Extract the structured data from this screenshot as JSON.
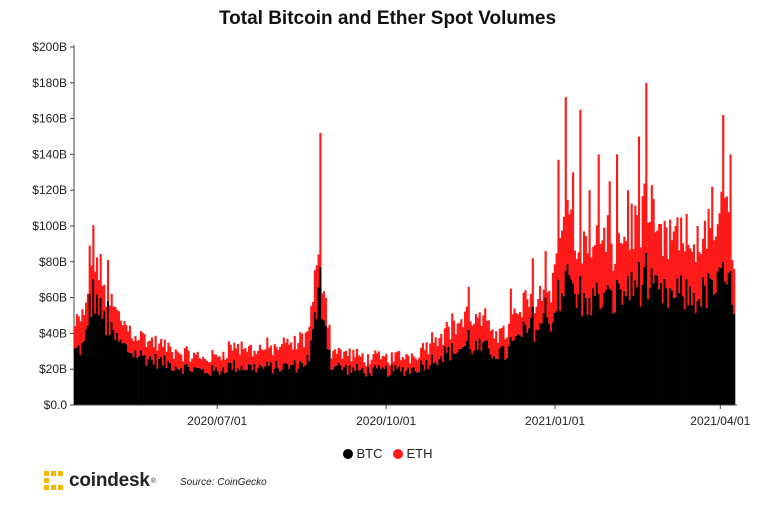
{
  "chart_data": {
    "type": "bar",
    "stacked": true,
    "title": "Total Bitcoin and Ether Spot Volumes",
    "xlabel": "",
    "ylabel": "",
    "ylim": [
      0,
      200
    ],
    "y_unit": "billion USD",
    "y_ticks": [
      {
        "value": 0,
        "label": "$0.0"
      },
      {
        "value": 20,
        "label": "$20B"
      },
      {
        "value": 40,
        "label": "$40B"
      },
      {
        "value": 60,
        "label": "$60B"
      },
      {
        "value": 80,
        "label": "$80B"
      },
      {
        "value": 100,
        "label": "$100B"
      },
      {
        "value": 120,
        "label": "$120B"
      },
      {
        "value": 140,
        "label": "$140B"
      },
      {
        "value": 160,
        "label": "$160B"
      },
      {
        "value": 180,
        "label": "$180B"
      },
      {
        "value": 200,
        "label": "$200B"
      }
    ],
    "x_ticks": [
      {
        "day": 78,
        "label": "2020/07/01"
      },
      {
        "day": 170,
        "label": "2020/10/01"
      },
      {
        "day": 262,
        "label": "2021/01/01"
      },
      {
        "day": 352,
        "label": "2021/04/01"
      }
    ],
    "day_range": [
      0,
      360
    ],
    "series": [
      {
        "name": "BTC",
        "color": "#000000"
      },
      {
        "name": "ETH",
        "color": "#ff1a1a"
      }
    ],
    "btc_anchors": [
      [
        0,
        30
      ],
      [
        5,
        33
      ],
      [
        8,
        48
      ],
      [
        10,
        62
      ],
      [
        14,
        52
      ],
      [
        18,
        42
      ],
      [
        24,
        35
      ],
      [
        30,
        30
      ],
      [
        40,
        26
      ],
      [
        55,
        22
      ],
      [
        70,
        19
      ],
      [
        78,
        19
      ],
      [
        85,
        22
      ],
      [
        95,
        21
      ],
      [
        110,
        21
      ],
      [
        122,
        22
      ],
      [
        128,
        26
      ],
      [
        133,
        60
      ],
      [
        136,
        52
      ],
      [
        140,
        22
      ],
      [
        150,
        20
      ],
      [
        160,
        19
      ],
      [
        170,
        19
      ],
      [
        185,
        20
      ],
      [
        200,
        28
      ],
      [
        215,
        33
      ],
      [
        225,
        31
      ],
      [
        235,
        28
      ],
      [
        245,
        40
      ],
      [
        255,
        45
      ],
      [
        262,
        50
      ],
      [
        265,
        62
      ],
      [
        270,
        70
      ],
      [
        275,
        55
      ],
      [
        285,
        60
      ],
      [
        295,
        58
      ],
      [
        305,
        65
      ],
      [
        312,
        68
      ],
      [
        320,
        60
      ],
      [
        330,
        62
      ],
      [
        340,
        60
      ],
      [
        350,
        66
      ],
      [
        355,
        68
      ],
      [
        360,
        60
      ]
    ],
    "eth_anchors": [
      [
        0,
        14
      ],
      [
        5,
        16
      ],
      [
        8,
        24
      ],
      [
        10,
        25
      ],
      [
        14,
        20
      ],
      [
        18,
        17
      ],
      [
        24,
        14
      ],
      [
        30,
        12
      ],
      [
        40,
        10
      ],
      [
        55,
        8
      ],
      [
        70,
        7
      ],
      [
        78,
        8
      ],
      [
        85,
        11
      ],
      [
        95,
        10
      ],
      [
        110,
        11
      ],
      [
        122,
        12
      ],
      [
        128,
        16
      ],
      [
        133,
        22
      ],
      [
        136,
        18
      ],
      [
        140,
        9
      ],
      [
        150,
        8
      ],
      [
        160,
        7
      ],
      [
        170,
        7
      ],
      [
        185,
        8
      ],
      [
        200,
        13
      ],
      [
        215,
        16
      ],
      [
        225,
        14
      ],
      [
        235,
        12
      ],
      [
        245,
        16
      ],
      [
        255,
        18
      ],
      [
        262,
        22
      ],
      [
        265,
        35
      ],
      [
        270,
        42
      ],
      [
        275,
        28
      ],
      [
        285,
        30
      ],
      [
        295,
        30
      ],
      [
        305,
        34
      ],
      [
        312,
        40
      ],
      [
        320,
        30
      ],
      [
        330,
        30
      ],
      [
        340,
        28
      ],
      [
        350,
        33
      ],
      [
        355,
        40
      ],
      [
        360,
        32
      ]
    ],
    "spikes": [
      {
        "day": 8,
        "btc": 62,
        "total": 89
      },
      {
        "day": 18,
        "btc": 58,
        "total": 81
      },
      {
        "day": 132,
        "btc": 48,
        "total": 78
      },
      {
        "day": 134,
        "btc": 77,
        "total": 152
      },
      {
        "day": 215,
        "btc": 42,
        "total": 66
      },
      {
        "day": 238,
        "btc": 38,
        "total": 65
      },
      {
        "day": 250,
        "btc": 55,
        "total": 82
      },
      {
        "day": 257,
        "btc": 60,
        "total": 86
      },
      {
        "day": 264,
        "btc": 70,
        "total": 137
      },
      {
        "day": 268,
        "btc": 75,
        "total": 172
      },
      {
        "day": 272,
        "btc": 68,
        "total": 130
      },
      {
        "day": 276,
        "btc": 72,
        "total": 165
      },
      {
        "day": 281,
        "btc": 60,
        "total": 120
      },
      {
        "day": 286,
        "btc": 62,
        "total": 140
      },
      {
        "day": 292,
        "btc": 65,
        "total": 125
      },
      {
        "day": 296,
        "btc": 70,
        "total": 140
      },
      {
        "day": 302,
        "btc": 72,
        "total": 120
      },
      {
        "day": 308,
        "btc": 80,
        "total": 150
      },
      {
        "day": 312,
        "btc": 85,
        "total": 180
      },
      {
        "day": 316,
        "btc": 68,
        "total": 115
      },
      {
        "day": 328,
        "btc": 60,
        "total": 100
      },
      {
        "day": 340,
        "btc": 58,
        "total": 100
      },
      {
        "day": 348,
        "btc": 70,
        "total": 122
      },
      {
        "day": 354,
        "btc": 80,
        "total": 162
      },
      {
        "day": 358,
        "btc": 75,
        "total": 140
      }
    ]
  },
  "legend": {
    "btc_label": "BTC",
    "eth_label": "ETH"
  },
  "footer": {
    "logo_text": "coindesk",
    "registered": "®",
    "source": "Source: CoinGecko"
  }
}
